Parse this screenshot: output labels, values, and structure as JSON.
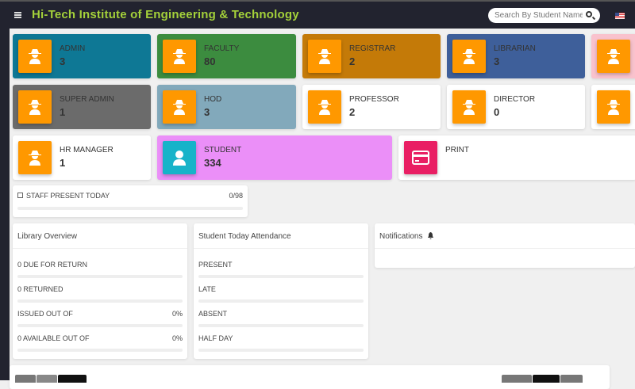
{
  "header": {
    "title": "Hi-Tech Institute of Engineering & Technology",
    "search_placeholder": "Search By Student Name"
  },
  "cards": [
    {
      "label": "ADMIN",
      "value": "3",
      "color": "#0e7895",
      "icon": "spy-icon"
    },
    {
      "label": "FACULTY",
      "value": "80",
      "color": "#3c8c3f",
      "icon": "spy-icon"
    },
    {
      "label": "REGISTRAR",
      "value": "2",
      "color": "#c47a08",
      "icon": "spy-icon"
    },
    {
      "label": "LIBRARIAN",
      "value": "3",
      "color": "#3e5f9a",
      "icon": "spy-icon"
    },
    {
      "label": "",
      "value": "",
      "color": "#f9c2cd",
      "icon": "spy-icon"
    },
    {
      "label": "SUPER ADMIN",
      "value": "1",
      "color": "#6b6b6b",
      "icon": "spy-icon"
    },
    {
      "label": "HOD",
      "value": "3",
      "color": "#82a9bb",
      "icon": "spy-icon"
    },
    {
      "label": "PROFESSOR",
      "value": "2",
      "color": "#ffffff",
      "icon": "spy-icon"
    },
    {
      "label": "DIRECTOR",
      "value": "0",
      "color": "#ffffff",
      "icon": "spy-icon"
    },
    {
      "label": "",
      "value": "",
      "color": "#ffffff",
      "icon": "spy-icon"
    },
    {
      "label": "HR MANAGER",
      "value": "1",
      "color": "#ffffff",
      "icon": "spy-icon"
    },
    {
      "label": "STUDENT",
      "value": "334",
      "color": "#eb8ff8",
      "icon": "user-icon",
      "icon_color": "#17b3c9"
    },
    {
      "label": "PRINT",
      "value": "",
      "color": "#ffffff",
      "icon": "credit-card-icon",
      "icon_color": "#e91e63"
    }
  ],
  "staff": {
    "label": "STAFF PRESENT TODAY",
    "value": "0/98",
    "progress": 0
  },
  "library": {
    "title": "Library Overview",
    "rows": [
      {
        "label": "0 DUE FOR RETURN",
        "value": ""
      },
      {
        "label": "0 RETURNED",
        "value": ""
      },
      {
        "label": "ISSUED OUT OF",
        "value": "0%"
      },
      {
        "label": "0 AVAILABLE OUT OF",
        "value": "0%"
      }
    ]
  },
  "attendance": {
    "title": "Student Today Attendance",
    "rows": [
      {
        "label": "PRESENT"
      },
      {
        "label": "LATE"
      },
      {
        "label": "ABSENT"
      },
      {
        "label": "HALF DAY"
      }
    ]
  },
  "notifications": {
    "title": "Notifications"
  }
}
